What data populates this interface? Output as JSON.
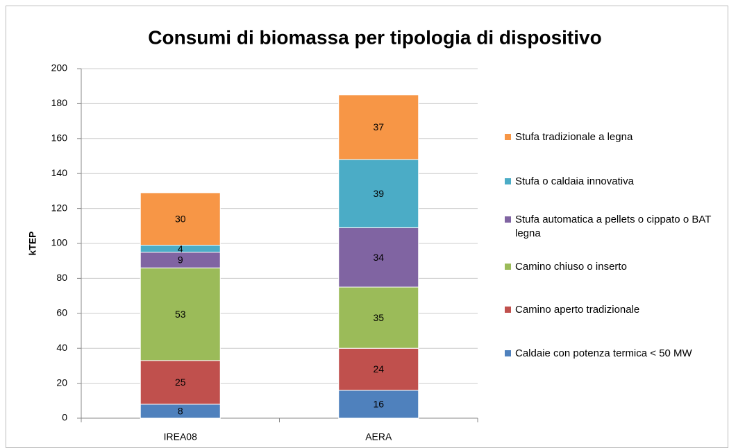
{
  "chart_data": {
    "type": "stacked_bar",
    "title": "Consumi di biomassa per tipologia di dispositivo",
    "y_label": "kTEP",
    "categories": [
      "IREA08",
      "AERA"
    ],
    "series": [
      {
        "name": "Caldaie con potenza termica < 50 MW",
        "color": "#4f81bd",
        "values": [
          8,
          16
        ]
      },
      {
        "name": "Camino aperto tradizionale",
        "color": "#c0504d",
        "values": [
          25,
          24
        ]
      },
      {
        "name": "Camino chiuso o inserto",
        "color": "#9bbb59",
        "values": [
          53,
          35
        ]
      },
      {
        "name": "Stufa automatica a pellets o cippato o BAT legna",
        "color": "#8064a2",
        "values": [
          9,
          34
        ]
      },
      {
        "name": "Stufa o caldaia innovativa",
        "color": "#4bacc6",
        "values": [
          4,
          39
        ]
      },
      {
        "name": "Stufa tradizionale a legna",
        "color": "#f79646",
        "values": [
          30,
          37
        ]
      }
    ],
    "ylim": [
      0,
      200
    ],
    "yticks": [
      0,
      20,
      40,
      60,
      80,
      100,
      120,
      140,
      160,
      180,
      200
    ],
    "grid": true,
    "legend": "right"
  }
}
